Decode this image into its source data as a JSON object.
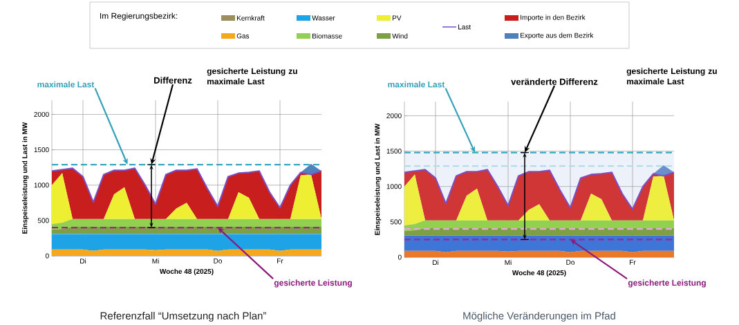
{
  "chart_data": [
    {
      "type": "area",
      "stacked": true,
      "legend": "top",
      "legend_title": "Im Regierungsbezirk:",
      "grid": true,
      "xlabel": "Woche 48 (2025)",
      "ylabel": "Einspeiseleistung und Last in MW",
      "categories": [
        null,
        null,
        null,
        "Di",
        null,
        null,
        null,
        null,
        null,
        null,
        "Mi",
        null,
        null,
        null,
        null,
        null,
        "Do",
        null,
        null,
        null,
        null,
        null,
        "Fr",
        null,
        null,
        null,
        null
      ],
      "ylim": [
        0,
        2200
      ],
      "yticks": [
        0,
        500,
        1000,
        1500,
        2000
      ],
      "series": [
        {
          "name": "Gas",
          "color": "#f5a81c",
          "values": [
            90,
            90,
            90,
            90,
            70,
            90,
            90,
            90,
            90,
            90,
            80,
            90,
            90,
            90,
            90,
            90,
            70,
            90,
            90,
            90,
            90,
            90,
            70,
            90,
            90,
            90,
            90
          ]
        },
        {
          "name": "Wasser",
          "color": "#1ea3e6",
          "values": [
            220,
            220,
            220,
            220,
            240,
            220,
            220,
            220,
            220,
            220,
            230,
            220,
            220,
            220,
            220,
            220,
            240,
            220,
            220,
            220,
            220,
            220,
            240,
            220,
            220,
            220,
            220
          ]
        },
        {
          "name": "Kernkraft",
          "color": "#9c8f5c",
          "values": [
            null,
            null,
            null,
            null,
            null,
            null,
            null,
            null,
            null,
            null,
            null,
            null,
            null,
            null,
            null,
            null,
            null,
            null,
            null,
            null,
            null,
            null,
            null,
            null,
            null,
            null,
            null
          ]
        },
        {
          "name": "Wind",
          "color": "#7f9f45",
          "values": [
            60,
            70,
            100,
            100,
            100,
            100,
            100,
            100,
            100,
            100,
            100,
            100,
            100,
            100,
            100,
            100,
            100,
            100,
            100,
            100,
            100,
            100,
            100,
            100,
            100,
            100,
            100
          ]
        },
        {
          "name": "Biomasse",
          "color": "#92d050",
          "values": [
            80,
            90,
            110,
            110,
            110,
            110,
            110,
            110,
            110,
            110,
            110,
            110,
            110,
            110,
            110,
            110,
            110,
            110,
            110,
            110,
            110,
            110,
            110,
            110,
            110,
            110,
            110
          ]
        },
        {
          "name": "PV",
          "color": "#eeee32",
          "values": [
            550,
            700,
            0,
            0,
            0,
            0,
            350,
            450,
            0,
            0,
            0,
            0,
            150,
            230,
            0,
            0,
            0,
            0,
            380,
            300,
            0,
            0,
            0,
            0,
            620,
            630,
            0
          ]
        },
        {
          "name": "Importe in den Bezirk",
          "color": "#c81e1e",
          "values": [
            200,
            50,
            720,
            600,
            240,
            630,
            340,
            240,
            720,
            480,
            210,
            630,
            540,
            460,
            710,
            430,
            180,
            600,
            270,
            360,
            680,
            380,
            160,
            480,
            40,
            0,
            680
          ]
        },
        {
          "name": "Exporte aus dem Bezirk",
          "color": "#4f81bd",
          "values": [
            0,
            0,
            0,
            0,
            0,
            0,
            0,
            0,
            0,
            0,
            0,
            0,
            0,
            0,
            0,
            0,
            0,
            0,
            0,
            0,
            0,
            0,
            0,
            0,
            0,
            150,
            0
          ]
        },
        {
          "name": "Last",
          "type": "line",
          "color": "#7b4fc8",
          "line_style": "solid",
          "values": [
            1200,
            1220,
            1240,
            1120,
            760,
            1150,
            1210,
            1210,
            1240,
            1000,
            730,
            1150,
            1210,
            1210,
            1230,
            950,
            700,
            1120,
            1170,
            1180,
            1200,
            900,
            680,
            1000,
            1180,
            1150,
            1200
          ]
        }
      ],
      "ref_lines": [
        {
          "axis": "y",
          "value": 1290,
          "color": "#3aa6bf",
          "line_style": "dashed"
        },
        {
          "axis": "y",
          "value": 400,
          "color": "#a3229a",
          "line_style": "dashed"
        }
      ],
      "annotations": [
        "maximale Last",
        "Differenz",
        "gesicherte Leistung zu maximale Last",
        {
          "text": "gesicherte Leistung",
          "x": "Do",
          "y": 400
        },
        "Referenzfall “Umsetzung nach Plan”"
      ]
    },
    {
      "type": "area",
      "stacked": true,
      "grid": true,
      "xlabel": "Woche 48 (2025)",
      "ylabel": "Einspeiseleistung und Last in MW",
      "categories": [
        null,
        null,
        null,
        "Di",
        null,
        null,
        null,
        null,
        null,
        null,
        "Mi",
        null,
        null,
        null,
        null,
        null,
        "Do",
        null,
        null,
        null,
        null,
        null,
        "Fr",
        null,
        null,
        null,
        null
      ],
      "ylim": [
        0,
        2200
      ],
      "yticks": [
        0,
        500,
        1000,
        1500,
        2000
      ],
      "series": [
        {
          "color": "#e8782a",
          "values": [
            90,
            90,
            90,
            90,
            70,
            90,
            90,
            90,
            90,
            90,
            80,
            90,
            90,
            90,
            90,
            90,
            70,
            90,
            90,
            90,
            90,
            90,
            70,
            90,
            90,
            90,
            90
          ]
        },
        {
          "color": "#3d76d6",
          "values": [
            220,
            220,
            220,
            220,
            240,
            220,
            220,
            220,
            220,
            220,
            230,
            220,
            220,
            220,
            220,
            220,
            240,
            220,
            220,
            220,
            220,
            220,
            240,
            220,
            220,
            220,
            220
          ]
        },
        {
          "color": "#7f9f45",
          "values": [
            60,
            70,
            100,
            100,
            100,
            100,
            100,
            100,
            100,
            100,
            100,
            100,
            100,
            100,
            100,
            100,
            100,
            100,
            100,
            100,
            100,
            100,
            100,
            100,
            100,
            100,
            100
          ]
        },
        {
          "color": "#92d050",
          "values": [
            80,
            90,
            110,
            110,
            110,
            110,
            110,
            110,
            110,
            110,
            110,
            110,
            110,
            110,
            110,
            110,
            110,
            110,
            110,
            110,
            110,
            110,
            110,
            110,
            110,
            110,
            110
          ]
        },
        {
          "color": "#eeee40",
          "values": [
            550,
            700,
            0,
            0,
            0,
            0,
            350,
            450,
            0,
            0,
            0,
            0,
            150,
            230,
            0,
            0,
            0,
            0,
            380,
            300,
            0,
            0,
            0,
            0,
            620,
            630,
            0
          ]
        },
        {
          "color": "#d03636",
          "values": [
            200,
            50,
            720,
            600,
            240,
            630,
            340,
            240,
            720,
            480,
            210,
            630,
            540,
            460,
            710,
            430,
            180,
            600,
            270,
            360,
            680,
            380,
            160,
            480,
            40,
            0,
            680
          ]
        },
        {
          "color": "#6a8fcc",
          "values": [
            0,
            0,
            0,
            0,
            0,
            0,
            0,
            0,
            0,
            0,
            0,
            0,
            0,
            0,
            0,
            0,
            0,
            0,
            0,
            0,
            0,
            0,
            0,
            0,
            0,
            150,
            0
          ]
        },
        {
          "type": "line",
          "color": "#7b4fc8",
          "line_style": "solid",
          "values": [
            1200,
            1220,
            1240,
            1120,
            760,
            1150,
            1210,
            1210,
            1240,
            1000,
            730,
            1150,
            1210,
            1210,
            1230,
            950,
            700,
            1120,
            1170,
            1180,
            1200,
            900,
            680,
            1000,
            1180,
            1150,
            1200
          ]
        }
      ],
      "bands": [
        {
          "axis": "y",
          "from": 0,
          "to": 1480,
          "color": "#edf2fa"
        }
      ],
      "ref_lines": [
        {
          "axis": "y",
          "value": 1480,
          "color": "#3aa6bf",
          "line_style": "dashed"
        },
        {
          "axis": "y",
          "value": 250,
          "color": "#a3229a",
          "line_style": "dashed"
        },
        {
          "axis": "y",
          "value": 1290,
          "color": "#b3dde6",
          "line_style": "dashed"
        },
        {
          "axis": "y",
          "value": 400,
          "color": "#e6a8e0",
          "line_style": "dashed"
        }
      ],
      "annotations": [
        "maximale Last",
        "veränderte Differenz",
        "gesicherte Leistung zu maximale Last",
        {
          "text": "gesicherte Leistung",
          "x": "Do",
          "y": 250
        },
        "Mögliche Veränderungen im Pfad"
      ]
    }
  ]
}
